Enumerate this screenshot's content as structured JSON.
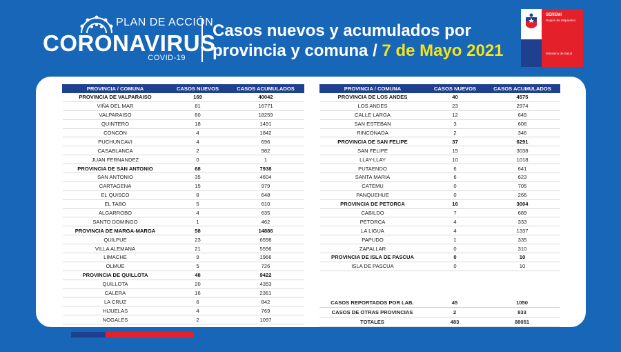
{
  "header": {
    "logo_top": "PLAN DE ACCIÓN",
    "logo_main": "CORONAVIRUS",
    "logo_sub": "COVID-19",
    "title_line1": "Casos nuevos y acumulados por",
    "title_line2": "provincia y comuna",
    "title_sep": " / ",
    "title_date": "7 de Mayo 2021",
    "seremi_name": "SEREMI",
    "seremi_region": "Región de Valparaíso",
    "seremi_ministry": "Ministerio de Salud"
  },
  "colors": {
    "background": "#1766b8",
    "header_row": "#1f3f8f",
    "accent_yellow": "#f3e51a",
    "gov_red": "#e4212b"
  },
  "columns": [
    "PROVINCIA / COMUNA",
    "CASOS NUEVOS",
    "CASOS ACUMULADOS"
  ],
  "left_rows": [
    {
      "name": "PROVINCIA DE VALPARAISO",
      "nuevos": "169",
      "acum": "40042",
      "provincia": true
    },
    {
      "name": "VIÑA DEL MAR",
      "nuevos": "81",
      "acum": "16771",
      "provincia": false
    },
    {
      "name": "VALPARAISO",
      "nuevos": "60",
      "acum": "18259",
      "provincia": false
    },
    {
      "name": "QUINTERO",
      "nuevos": "18",
      "acum": "1491",
      "provincia": false
    },
    {
      "name": "CONCON",
      "nuevos": "4",
      "acum": "1842",
      "provincia": false
    },
    {
      "name": "PUCHUNCAVI",
      "nuevos": "4",
      "acum": "696",
      "provincia": false
    },
    {
      "name": "CASABLANCA",
      "nuevos": "2",
      "acum": "982",
      "provincia": false
    },
    {
      "name": "JUAN FERNANDEZ",
      "nuevos": "0",
      "acum": "1",
      "provincia": false
    },
    {
      "name": "PROVINCIA DE SAN ANTONIO",
      "nuevos": "68",
      "acum": "7938",
      "provincia": true
    },
    {
      "name": "SAN ANTONIO",
      "nuevos": "35",
      "acum": "4604",
      "provincia": false
    },
    {
      "name": "CARTAGENA",
      "nuevos": "15",
      "acum": "979",
      "provincia": false
    },
    {
      "name": "EL QUISCO",
      "nuevos": "8",
      "acum": "648",
      "provincia": false
    },
    {
      "name": "EL TABO",
      "nuevos": "5",
      "acum": "610",
      "provincia": false
    },
    {
      "name": "ALGARROBO",
      "nuevos": "4",
      "acum": "635",
      "provincia": false
    },
    {
      "name": "SANTO DOMINGO",
      "nuevos": "1",
      "acum": "462",
      "provincia": false
    },
    {
      "name": "PROVINCIA DE MARGA-MARGA",
      "nuevos": "58",
      "acum": "14886",
      "provincia": true
    },
    {
      "name": "QUILPUE",
      "nuevos": "23",
      "acum": "6598",
      "provincia": false
    },
    {
      "name": "VILLA ALEMANA",
      "nuevos": "21",
      "acum": "5596",
      "provincia": false
    },
    {
      "name": "LIMACHE",
      "nuevos": "9",
      "acum": "1966",
      "provincia": false
    },
    {
      "name": "OLMUE",
      "nuevos": "5",
      "acum": "726",
      "provincia": false
    },
    {
      "name": "PROVINCIA DE QUILLOTA",
      "nuevos": "48",
      "acum": "9422",
      "provincia": true
    },
    {
      "name": "QUILLOTA",
      "nuevos": "20",
      "acum": "4353",
      "provincia": false
    },
    {
      "name": "CALERA",
      "nuevos": "16",
      "acum": "2361",
      "provincia": false
    },
    {
      "name": "LA CRUZ",
      "nuevos": "6",
      "acum": "842",
      "provincia": false
    },
    {
      "name": "HIJUELAS",
      "nuevos": "4",
      "acum": "769",
      "provincia": false
    },
    {
      "name": "NOGALES",
      "nuevos": "2",
      "acum": "1097",
      "provincia": false
    }
  ],
  "right_rows": [
    {
      "name": "PROVINCIA DE LOS ANDES",
      "nuevos": "40",
      "acum": "4575",
      "provincia": true
    },
    {
      "name": "LOS ANDES",
      "nuevos": "23",
      "acum": "2974",
      "provincia": false
    },
    {
      "name": "CALLE LARGA",
      "nuevos": "12",
      "acum": "649",
      "provincia": false
    },
    {
      "name": "SAN ESTEBAN",
      "nuevos": "3",
      "acum": "606",
      "provincia": false
    },
    {
      "name": "RINCONADA",
      "nuevos": "2",
      "acum": "346",
      "provincia": false
    },
    {
      "name": "PROVINCIA DE SAN FELIPE",
      "nuevos": "37",
      "acum": "6291",
      "provincia": true
    },
    {
      "name": "SAN FELIPE",
      "nuevos": "15",
      "acum": "3038",
      "provincia": false
    },
    {
      "name": "LLAY-LLAY",
      "nuevos": "10",
      "acum": "1018",
      "provincia": false
    },
    {
      "name": "PUTAENDO",
      "nuevos": "6",
      "acum": "641",
      "provincia": false
    },
    {
      "name": "SANTA MARIA",
      "nuevos": "6",
      "acum": "623",
      "provincia": false
    },
    {
      "name": "CATEMU",
      "nuevos": "0",
      "acum": "705",
      "provincia": false
    },
    {
      "name": "PANQUEHUE",
      "nuevos": "0",
      "acum": "266",
      "provincia": false
    },
    {
      "name": "PROVINCIA DE PETORCA",
      "nuevos": "16",
      "acum": "3004",
      "provincia": true
    },
    {
      "name": "CABILDO",
      "nuevos": "7",
      "acum": "689",
      "provincia": false
    },
    {
      "name": "PETORCA",
      "nuevos": "4",
      "acum": "333",
      "provincia": false
    },
    {
      "name": "LA LIGUA",
      "nuevos": "4",
      "acum": "1337",
      "provincia": false
    },
    {
      "name": "PAPUDO",
      "nuevos": "1",
      "acum": "335",
      "provincia": false
    },
    {
      "name": "ZAPALLAR",
      "nuevos": "0",
      "acum": "310",
      "provincia": false
    },
    {
      "name": "PROVINCIA DE ISLA DE PASCUA",
      "nuevos": "0",
      "acum": "10",
      "provincia": true
    },
    {
      "name": "ISLA DE PASCUA",
      "nuevos": "0",
      "acum": "10",
      "provincia": false
    }
  ],
  "summary_rows": [
    {
      "name": "CASOS REPORTADOS POR LAB.",
      "nuevos": "45",
      "acum": "1050"
    },
    {
      "name": "CASOS DE OTRAS PROVINCIAS",
      "nuevos": "2",
      "acum": "833"
    },
    {
      "name": "TOTALES",
      "nuevos": "483",
      "acum": "88051"
    }
  ]
}
